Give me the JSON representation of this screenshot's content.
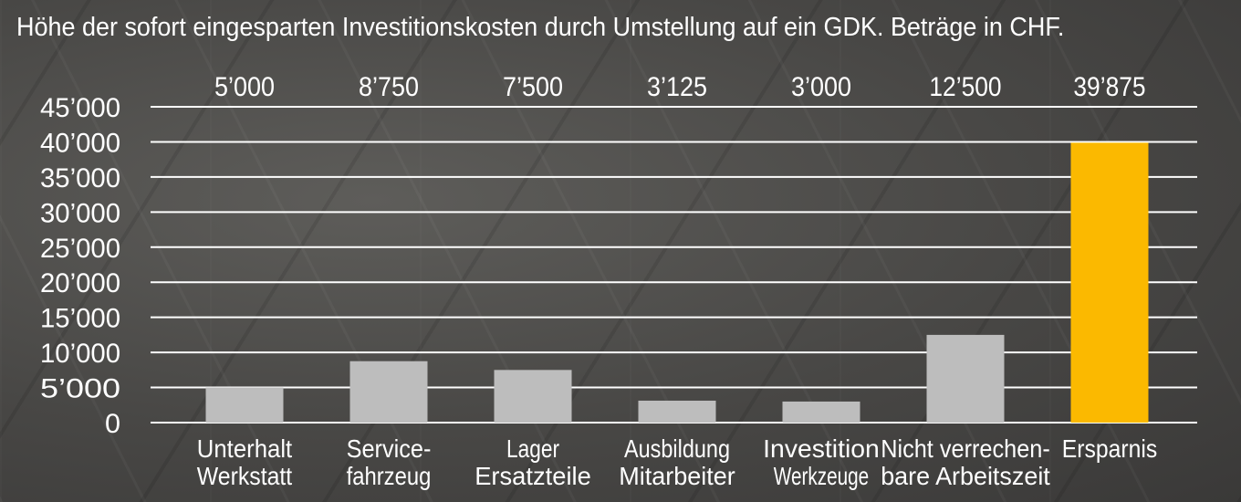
{
  "chart_data": {
    "type": "bar",
    "title": "Höhe der sofort eingesparten Investitionskosten durch Umstellung auf ein GDK. Beträge in CHF.",
    "xlabel": "",
    "ylabel": "",
    "ylim": [
      0,
      45000
    ],
    "y_ticks": [
      {
        "value": 0,
        "label": "0"
      },
      {
        "value": 5000,
        "label": "5’000"
      },
      {
        "value": 10000,
        "label": "10’000"
      },
      {
        "value": 15000,
        "label": "15’000"
      },
      {
        "value": 20000,
        "label": "20’000"
      },
      {
        "value": 25000,
        "label": "25’000"
      },
      {
        "value": 30000,
        "label": "30’000"
      },
      {
        "value": 35000,
        "label": "35’000"
      },
      {
        "value": 40000,
        "label": "40’000"
      },
      {
        "value": 45000,
        "label": "45’000"
      }
    ],
    "grid": true,
    "legend": "none",
    "bars": [
      {
        "category": [
          "Unterhalt",
          "Werkstatt"
        ],
        "value": 5000,
        "label": "5’000",
        "color": "#bdbdbd"
      },
      {
        "category": [
          "Service-",
          "fahrzeug"
        ],
        "value": 8750,
        "label": "8’750",
        "color": "#bdbdbd"
      },
      {
        "category": [
          "Lager",
          "Ersatzteile"
        ],
        "value": 7500,
        "label": "7’500",
        "color": "#bdbdbd"
      },
      {
        "category": [
          "Ausbildung",
          "Mitarbeiter"
        ],
        "value": 3125,
        "label": "3’125",
        "color": "#bdbdbd"
      },
      {
        "category": [
          "Investition",
          "Werkzeuge"
        ],
        "value": 3000,
        "label": "3’000",
        "color": "#bdbdbd"
      },
      {
        "category": [
          "Nicht verrechen-",
          "bare Arbeitszeit"
        ],
        "value": 12500,
        "label": "12’500",
        "color": "#bdbdbd"
      },
      {
        "category": [
          "Ersparnis"
        ],
        "value": 39875,
        "label": "39’875",
        "color": "#fbb900"
      }
    ],
    "colors": {
      "bar": "#bdbdbd",
      "highlight": "#fbb900",
      "grid": "#ffffff",
      "text": "#ffffff"
    }
  }
}
